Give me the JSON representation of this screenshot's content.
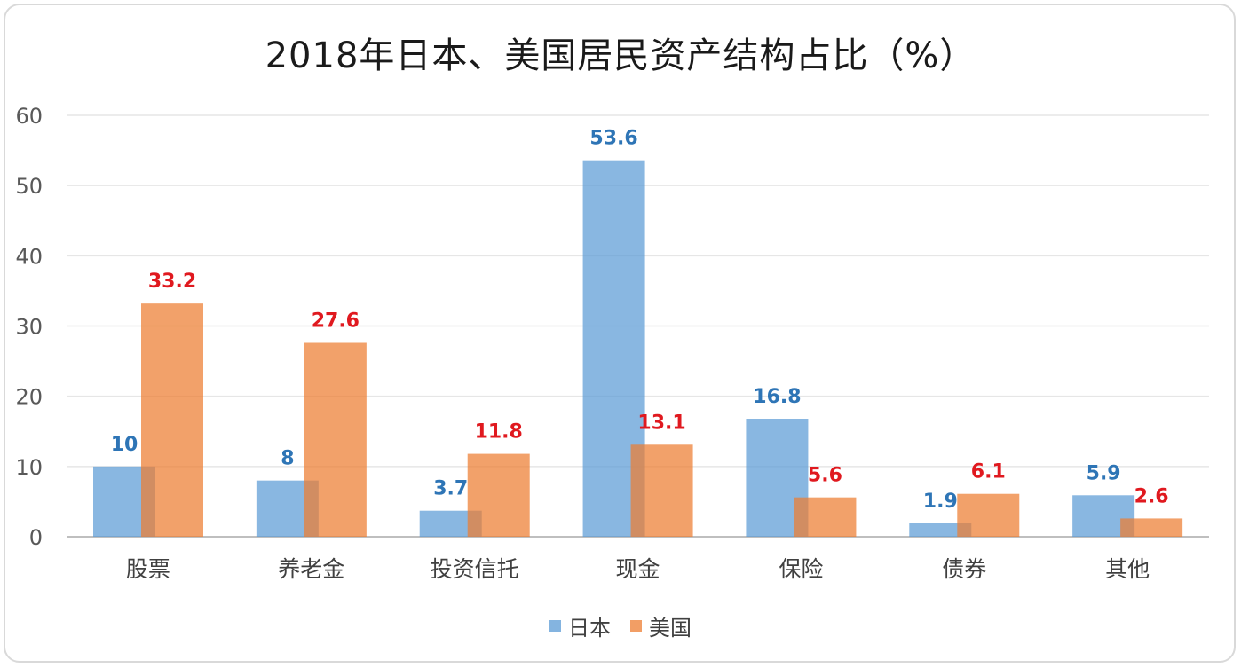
{
  "chart_data": {
    "type": "bar",
    "title": "2018年日本、美国居民资产结构占比（%）",
    "categories": [
      "股票",
      "养老金",
      "投资信托",
      "现金",
      "保险",
      "债券",
      "其他"
    ],
    "series": [
      {
        "name": "日本",
        "color": "#5b9bd5",
        "label_color": "#2e75b6",
        "values": [
          10,
          8,
          3.7,
          53.6,
          16.8,
          1.9,
          5.9
        ]
      },
      {
        "name": "美国",
        "color": "#ed7d31",
        "label_color": "#e0191f",
        "values": [
          33.2,
          27.6,
          11.8,
          13.1,
          5.6,
          6.1,
          2.6
        ]
      }
    ],
    "value_labels": [
      [
        "10",
        "8",
        "3.7",
        "53.6",
        "16.8",
        "1.9",
        "5.9"
      ],
      [
        "33.2",
        "27.6",
        "11.8",
        "13.1",
        "5.6",
        "6.1",
        "2.6"
      ]
    ],
    "ylim": [
      0,
      60
    ],
    "yticks": [
      "0",
      "10",
      "20",
      "30",
      "40",
      "50",
      "60"
    ],
    "grid": true,
    "legend_position": "bottom-center"
  }
}
